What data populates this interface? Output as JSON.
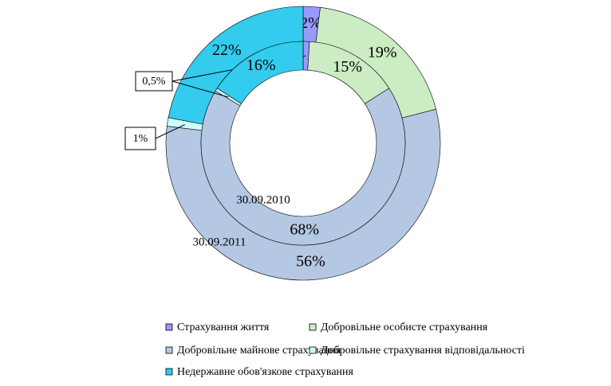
{
  "chart_data": {
    "type": "doughnut",
    "categories": [
      "Страхування життя",
      "Добровільне особисте страхування",
      "Добровільне майнове страхування",
      "Добровільне страхування відповідальності",
      "Недержавне обов'язкове страхування"
    ],
    "colors": [
      "#9999ff",
      "#ccecc4",
      "#b4c8e4",
      "#ccffff",
      "#33ccee"
    ],
    "series": [
      {
        "name": "30.09.2011",
        "values": [
          2,
          19,
          56,
          1,
          22
        ],
        "value_labels": [
          "2%",
          "19%",
          "56%",
          "1%",
          "22%"
        ]
      },
      {
        "name": "30.09.2010",
        "values": [
          1,
          15,
          68,
          0.5,
          16
        ],
        "value_labels": [
          "1%",
          "15%",
          "68%",
          "0,5%",
          "16%"
        ]
      }
    ]
  }
}
